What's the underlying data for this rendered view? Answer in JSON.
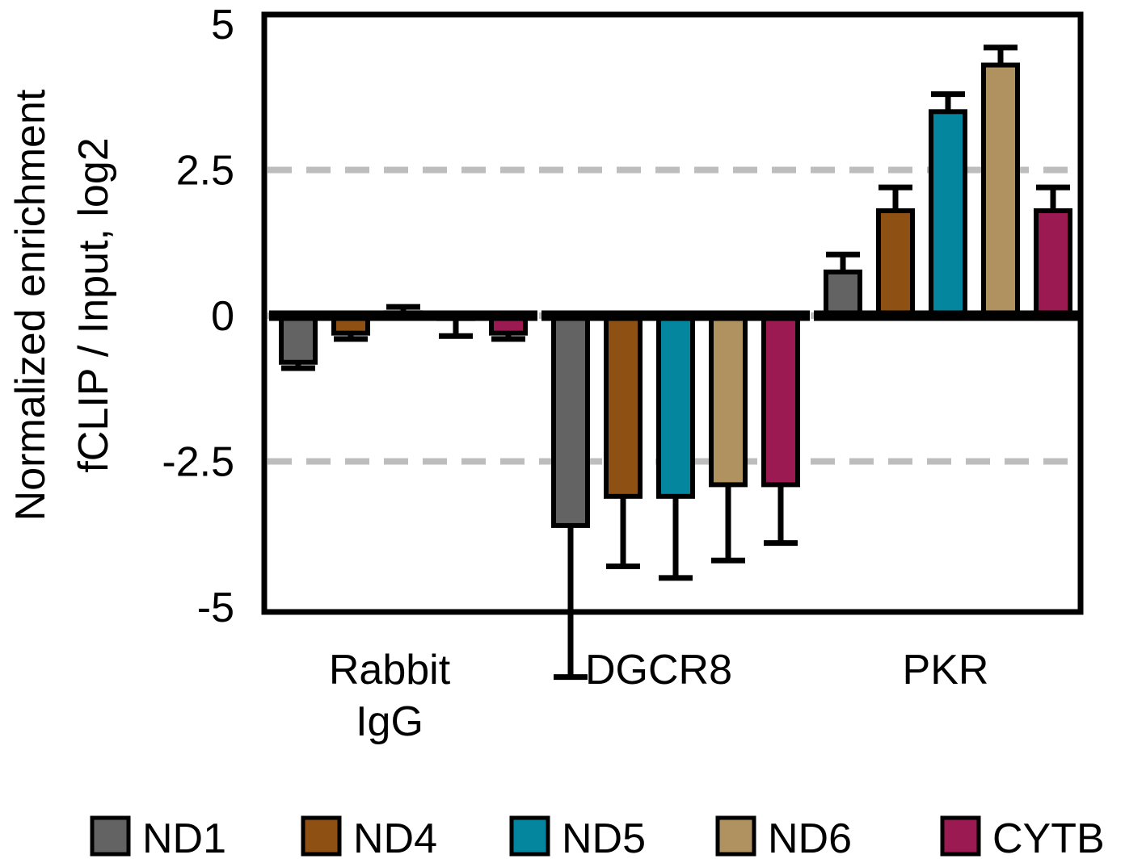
{
  "chart_data": {
    "type": "bar",
    "title": "",
    "ylabel_lines": [
      "Normalized enrichment",
      "fCLIP / Input, log2"
    ],
    "xlabel": "",
    "ylim": [
      -5,
      5
    ],
    "yticks": [
      {
        "value": 5,
        "label": "5"
      },
      {
        "value": 2.5,
        "label": "2.5"
      },
      {
        "value": 0,
        "label": "0"
      },
      {
        "value": -2.5,
        "label": "-2.5"
      },
      {
        "value": -5,
        "label": "-5"
      }
    ],
    "reference_lines": [
      2.5,
      -2.5
    ],
    "grid": false,
    "legend_position": "bottom",
    "categories": [
      {
        "lines": [
          "Rabbit",
          "IgG"
        ]
      },
      {
        "lines": [
          "DGCR8"
        ]
      },
      {
        "lines": [
          "PKR"
        ]
      }
    ],
    "series": [
      {
        "name": "ND1",
        "color": "#636363",
        "values": [
          -0.8,
          -3.6,
          0.75
        ],
        "errors": [
          0.1,
          2.6,
          0.3
        ]
      },
      {
        "name": "ND4",
        "color": "#8f5113",
        "values": [
          -0.3,
          -3.1,
          1.8
        ],
        "errors": [
          0.1,
          1.2,
          0.4
        ]
      },
      {
        "name": "ND5",
        "color": "#04869f",
        "values": [
          0.05,
          -3.1,
          3.5
        ],
        "errors": [
          0.1,
          1.4,
          0.3
        ]
      },
      {
        "name": "ND6",
        "color": "#b09261",
        "values": [
          -0.05,
          -2.9,
          4.3
        ],
        "errors": [
          0.3,
          1.3,
          0.3
        ]
      },
      {
        "name": "CYTB",
        "color": "#9c1a52",
        "values": [
          -0.3,
          -2.9,
          1.8
        ],
        "errors": [
          0.1,
          1.0,
          0.4
        ]
      }
    ]
  }
}
